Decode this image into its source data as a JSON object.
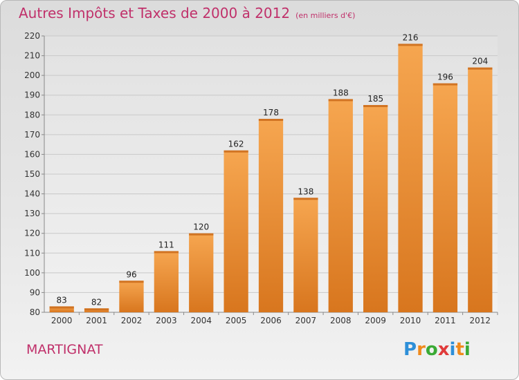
{
  "title": "Autres Impôts et Taxes de 2000 à 2012",
  "unit": "(en milliers d'€)",
  "location": "MARTIGNAT",
  "logo": {
    "letters": [
      "P",
      "r",
      "o",
      "x",
      "i",
      "t",
      "i"
    ],
    "colors": [
      "#2d8fd8",
      "#f08a1c",
      "#3aaa35",
      "#e03a3a",
      "#2d8fd8",
      "#f08a1c",
      "#3aaa35"
    ]
  },
  "colors": {
    "bar_light": "#f6a650",
    "bar_dark": "#d8761e",
    "text_accent": "#c0306a"
  },
  "chart_data": {
    "type": "bar",
    "categories": [
      "2000",
      "2001",
      "2002",
      "2003",
      "2004",
      "2005",
      "2006",
      "2007",
      "2008",
      "2009",
      "2010",
      "2011",
      "2012"
    ],
    "values": [
      83,
      82,
      96,
      111,
      120,
      162,
      178,
      138,
      188,
      185,
      216,
      196,
      204
    ],
    "ylim": [
      80,
      220
    ],
    "yticks": [
      80,
      90,
      100,
      110,
      120,
      130,
      140,
      150,
      160,
      170,
      180,
      190,
      200,
      210,
      220
    ],
    "grid": true,
    "legend": "none"
  }
}
